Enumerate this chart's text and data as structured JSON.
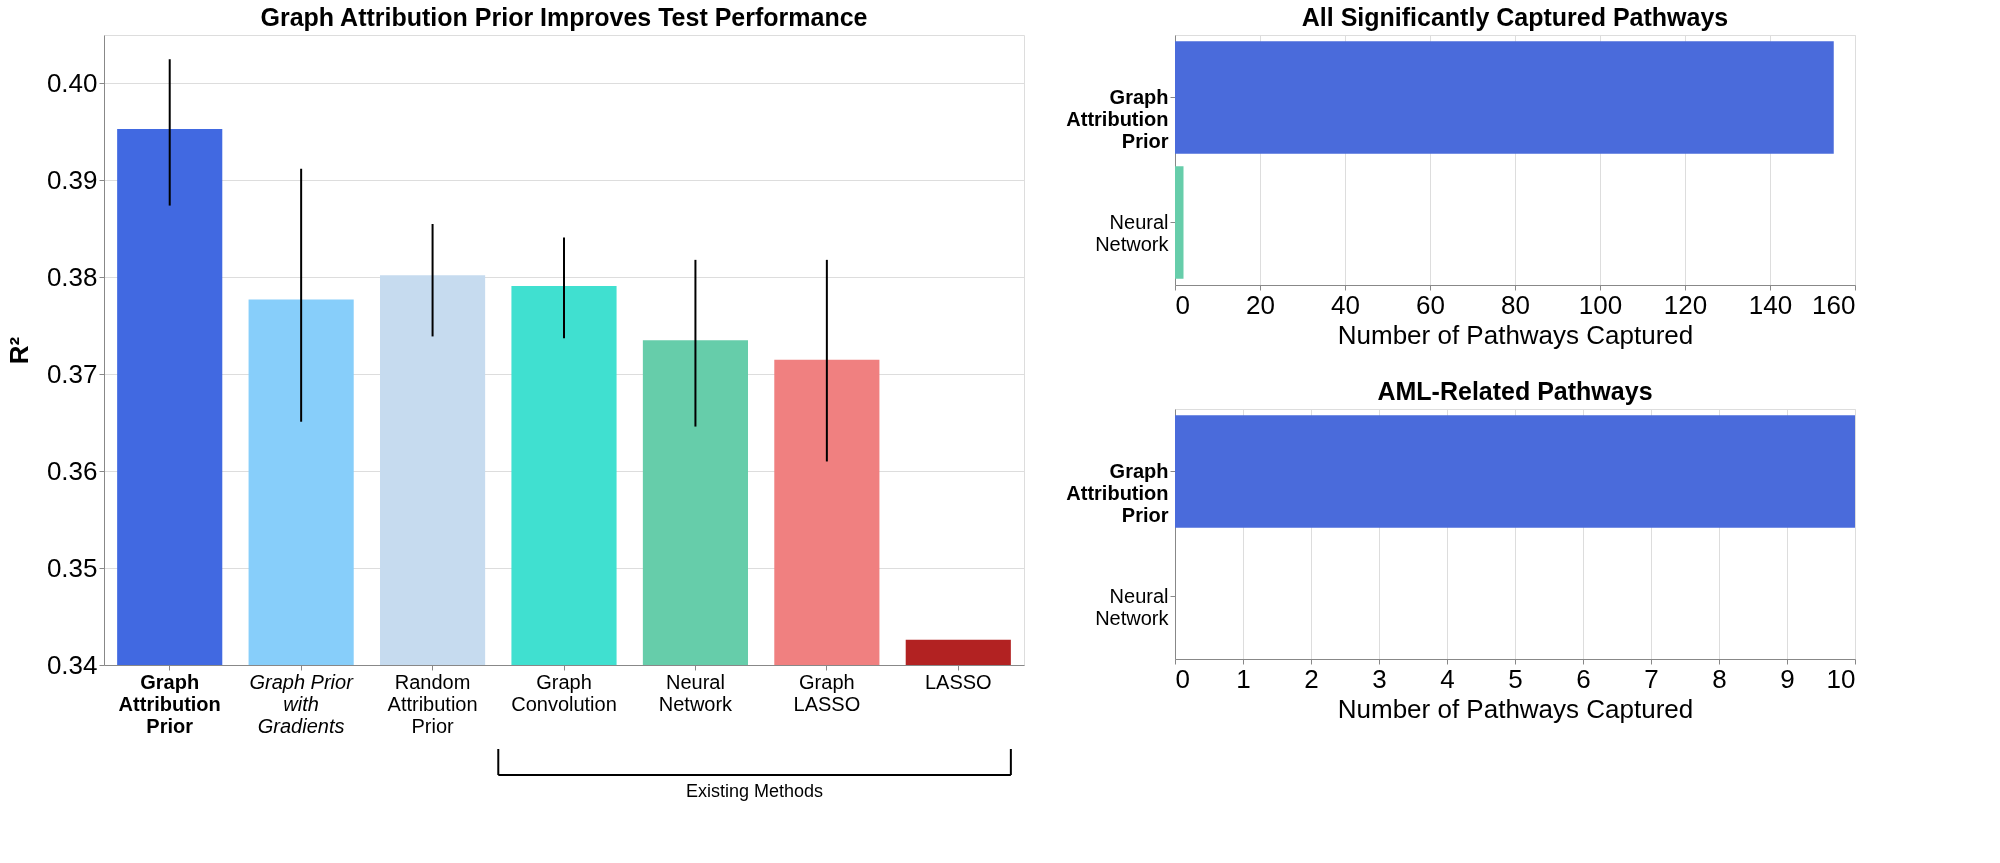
{
  "chart_data": [
    {
      "type": "bar",
      "title": "Graph Attribution Prior Improves Test Performance",
      "ylabel": "R²",
      "categories": [
        "Graph\nAttribution\nPrior",
        "Graph Prior\nwith\nGradients",
        "Random\nAttribution\nPrior",
        "Graph\nConvolution",
        "Neural\nNetwork",
        "Graph\nLASSO",
        "LASSO"
      ],
      "values": [
        0.3953,
        0.3777,
        0.3802,
        0.3791,
        0.3735,
        0.3715,
        0.3426
      ],
      "colors": [
        "#4169e1",
        "#87cefa",
        "#c6dbef",
        "#40e0d0",
        "#66cdaa",
        "#f08080",
        "#b22222"
      ],
      "errors": [
        [
          0.3874,
          0.4025
        ],
        [
          0.3651,
          0.3912
        ],
        [
          0.3739,
          0.3855
        ],
        [
          0.3737,
          0.3841
        ],
        [
          0.3646,
          0.3818
        ],
        [
          0.361,
          0.3818
        ],
        null
      ],
      "ylim": [
        0.34,
        0.405
      ],
      "yticks": [
        0.34,
        0.35,
        0.36,
        0.37,
        0.38,
        0.39,
        {
          "value": 0.4,
          "label": "0.40"
        }
      ],
      "grid": "y",
      "annotations": [
        "Existing Methods"
      ]
    },
    {
      "type": "bar",
      "orientation": "horizontal",
      "title": "All Significantly Captured Pathways",
      "xlabel": "Number of Pathways Captured",
      "categories": [
        "Graph\nAttribution\nPrior",
        "Neural\nNetwork"
      ],
      "values": [
        155,
        2
      ],
      "colors": [
        "#4a6bdb",
        "#66cdaa"
      ],
      "xlim": [
        0,
        160
      ],
      "xticks": [
        0,
        20,
        40,
        60,
        80,
        100,
        120,
        140,
        160
      ],
      "grid": "x"
    },
    {
      "type": "bar",
      "orientation": "horizontal",
      "title": "AML-Related Pathways",
      "xlabel": "Number of Pathways Captured",
      "categories": [
        "Graph\nAttribution\nPrior",
        "Neural\nNetwork"
      ],
      "values": [
        10,
        0
      ],
      "colors": [
        "#4a6bdb",
        "#66cdaa"
      ],
      "xlim": [
        0,
        10
      ],
      "xticks": [
        0,
        1,
        2,
        3,
        4,
        5,
        6,
        7,
        8,
        9,
        10
      ],
      "grid": "x"
    }
  ]
}
